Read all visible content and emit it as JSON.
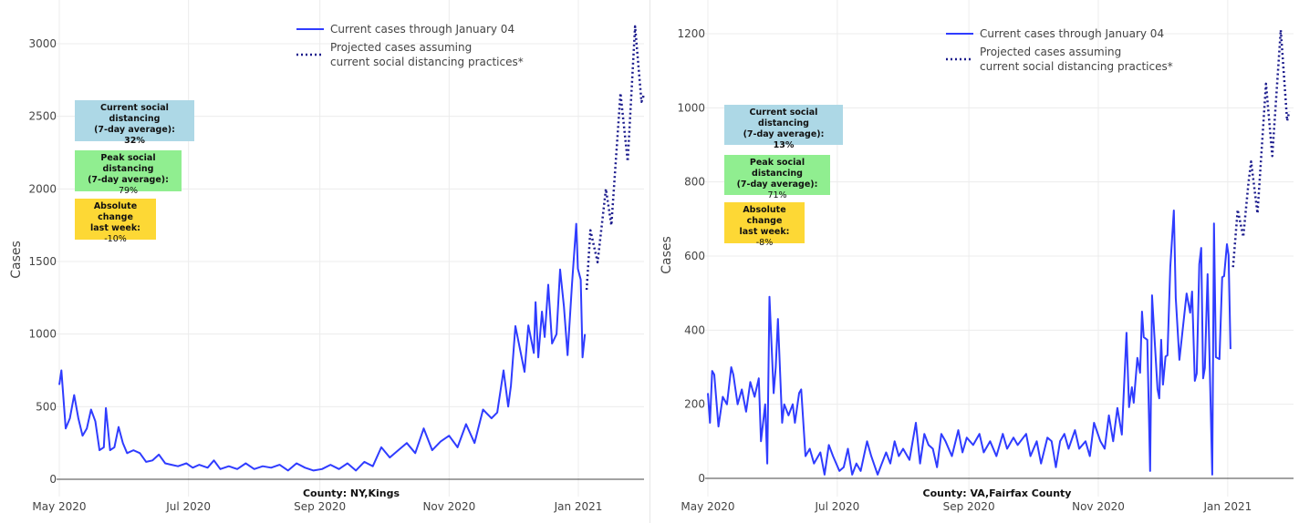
{
  "chart_data": [
    {
      "type": "line",
      "title": "",
      "xlabel": "County: NY,Kings",
      "ylabel": "Cases",
      "x_unit": "days since 2020-05-01",
      "xlim": [
        0,
        276
      ],
      "ylim": [
        0,
        3000
      ],
      "yticks": [
        0,
        500,
        1000,
        1500,
        2000,
        2500,
        3000
      ],
      "xticks": [
        {
          "day": 0,
          "label": "May 2020"
        },
        {
          "day": 61,
          "label": "Jul 2020"
        },
        {
          "day": 123,
          "label": "Sep 2020"
        },
        {
          "day": 184,
          "label": "Nov 2020"
        },
        {
          "day": 245,
          "label": "Jan 2021"
        }
      ],
      "grid": true,
      "legend_position": "top-center",
      "series": [
        {
          "name": "Current cases through January 04",
          "style": "solid",
          "color": "#2f3cff",
          "points": [
            [
              0,
              650
            ],
            [
              1,
              750
            ],
            [
              3,
              350
            ],
            [
              5,
              420
            ],
            [
              7,
              580
            ],
            [
              9,
              420
            ],
            [
              11,
              300
            ],
            [
              13,
              350
            ],
            [
              15,
              480
            ],
            [
              17,
              400
            ],
            [
              19,
              200
            ],
            [
              21,
              220
            ],
            [
              22,
              490
            ],
            [
              24,
              200
            ],
            [
              26,
              220
            ],
            [
              28,
              360
            ],
            [
              30,
              250
            ],
            [
              32,
              180
            ],
            [
              35,
              200
            ],
            [
              38,
              180
            ],
            [
              41,
              120
            ],
            [
              44,
              130
            ],
            [
              47,
              170
            ],
            [
              50,
              110
            ],
            [
              53,
              100
            ],
            [
              56,
              90
            ],
            [
              60,
              110
            ],
            [
              63,
              80
            ],
            [
              66,
              100
            ],
            [
              70,
              80
            ],
            [
              73,
              130
            ],
            [
              76,
              70
            ],
            [
              80,
              90
            ],
            [
              84,
              70
            ],
            [
              88,
              110
            ],
            [
              92,
              70
            ],
            [
              96,
              90
            ],
            [
              100,
              80
            ],
            [
              104,
              100
            ],
            [
              108,
              60
            ],
            [
              112,
              110
            ],
            [
              116,
              80
            ],
            [
              120,
              60
            ],
            [
              124,
              70
            ],
            [
              128,
              100
            ],
            [
              132,
              70
            ],
            [
              136,
              110
            ],
            [
              140,
              60
            ],
            [
              144,
              120
            ],
            [
              148,
              90
            ],
            [
              152,
              220
            ],
            [
              156,
              150
            ],
            [
              160,
              200
            ],
            [
              164,
              250
            ],
            [
              168,
              180
            ],
            [
              172,
              350
            ],
            [
              176,
              200
            ],
            [
              180,
              260
            ],
            [
              184,
              300
            ],
            [
              188,
              220
            ],
            [
              192,
              380
            ],
            [
              196,
              250
            ],
            [
              200,
              480
            ],
            [
              204,
              420
            ],
            [
              206.7,
              460
            ],
            [
              209.7,
              750
            ],
            [
              211.9,
              500
            ],
            [
              213.2,
              645
            ],
            [
              215.3,
              1055
            ],
            [
              219.6,
              740
            ],
            [
              221.4,
              1060
            ],
            [
              224,
              870
            ],
            [
              224.8,
              1220
            ],
            [
              226.1,
              840
            ],
            [
              227.8,
              1155
            ],
            [
              229.1,
              980
            ],
            [
              230.8,
              1340
            ],
            [
              232.6,
              935
            ],
            [
              234.7,
              1000
            ],
            [
              236.4,
              1445
            ],
            [
              238.2,
              1190
            ],
            [
              239.9,
              855
            ],
            [
              242,
              1340
            ],
            [
              244,
              1760
            ],
            [
              244.8,
              1450
            ],
            [
              246.1,
              1375
            ],
            [
              247,
              840
            ],
            [
              248.1,
              1000
            ]
          ]
        },
        {
          "name": "Projected cases assuming current social distancing practices*",
          "style": "dotted",
          "color": "#1a1a8c",
          "points": [
            [
              248.9,
              1305
            ],
            [
              250.7,
              1715
            ],
            [
              254.1,
              1495
            ],
            [
              258,
              2000
            ],
            [
              260.6,
              1750
            ],
            [
              264.9,
              2660
            ],
            [
              268.3,
              2190
            ],
            [
              271.8,
              3120
            ],
            [
              274.8,
              2600
            ],
            [
              276,
              2650
            ]
          ]
        }
      ]
    },
    {
      "type": "line",
      "title": "",
      "xlabel": "County: VA,Fairfax County",
      "ylabel": "Cases",
      "x_unit": "days since 2020-05-01",
      "xlim": [
        0,
        276
      ],
      "ylim": [
        0,
        1200
      ],
      "yticks": [
        0,
        200,
        400,
        600,
        800,
        1000,
        1200
      ],
      "xticks": [
        {
          "day": 0,
          "label": "May 2020"
        },
        {
          "day": 61,
          "label": "Jul 2020"
        },
        {
          "day": 123,
          "label": "Sep 2020"
        },
        {
          "day": 184,
          "label": "Nov 2020"
        },
        {
          "day": 245,
          "label": "Jan 2021"
        }
      ],
      "grid": true,
      "legend_position": "top-center",
      "series": [
        {
          "name": "Current cases through January 04",
          "style": "solid",
          "color": "#2f3cff",
          "points": [
            [
              0,
              230
            ],
            [
              1,
              150
            ],
            [
              2,
              290
            ],
            [
              3,
              280
            ],
            [
              5,
              140
            ],
            [
              7,
              220
            ],
            [
              9,
              200
            ],
            [
              11,
              300
            ],
            [
              12,
              280
            ],
            [
              14,
              200
            ],
            [
              16,
              240
            ],
            [
              18,
              180
            ],
            [
              20,
              260
            ],
            [
              22,
              220
            ],
            [
              24,
              270
            ],
            [
              25,
              100
            ],
            [
              27,
              200
            ],
            [
              28,
              40
            ],
            [
              29,
              490
            ],
            [
              31,
              230
            ],
            [
              32,
              300
            ],
            [
              33,
              430
            ],
            [
              35,
              150
            ],
            [
              36,
              200
            ],
            [
              38,
              170
            ],
            [
              40,
              200
            ],
            [
              41,
              150
            ],
            [
              43,
              230
            ],
            [
              44,
              240
            ],
            [
              46,
              60
            ],
            [
              48,
              80
            ],
            [
              50,
              40
            ],
            [
              53,
              70
            ],
            [
              55,
              10
            ],
            [
              57,
              90
            ],
            [
              59,
              60
            ],
            [
              62,
              20
            ],
            [
              64,
              30
            ],
            [
              66,
              80
            ],
            [
              68,
              10
            ],
            [
              70,
              40
            ],
            [
              72,
              20
            ],
            [
              75,
              100
            ],
            [
              77,
              60
            ],
            [
              80,
              10
            ],
            [
              82,
              40
            ],
            [
              84,
              70
            ],
            [
              86,
              40
            ],
            [
              88,
              100
            ],
            [
              90,
              60
            ],
            [
              92,
              80
            ],
            [
              95,
              50
            ],
            [
              98,
              150
            ],
            [
              100,
              40
            ],
            [
              102,
              120
            ],
            [
              104,
              90
            ],
            [
              106,
              80
            ],
            [
              108,
              30
            ],
            [
              110,
              120
            ],
            [
              112,
              100
            ],
            [
              115,
              60
            ],
            [
              118,
              130
            ],
            [
              120,
              70
            ],
            [
              122,
              110
            ],
            [
              125,
              90
            ],
            [
              128,
              120
            ],
            [
              130,
              70
            ],
            [
              133,
              100
            ],
            [
              136,
              60
            ],
            [
              139,
              120
            ],
            [
              141,
              80
            ],
            [
              144,
              110
            ],
            [
              146,
              90
            ],
            [
              150,
              120
            ],
            [
              152,
              60
            ],
            [
              155,
              100
            ],
            [
              157,
              40
            ],
            [
              160,
              110
            ],
            [
              162,
              100
            ],
            [
              164,
              30
            ],
            [
              166,
              100
            ],
            [
              168,
              120
            ],
            [
              170,
              80
            ],
            [
              173,
              130
            ],
            [
              175,
              80
            ],
            [
              178,
              100
            ],
            [
              180,
              60
            ],
            [
              182,
              150
            ],
            [
              185,
              100
            ],
            [
              187,
              80
            ],
            [
              189,
              170
            ],
            [
              191,
              100
            ],
            [
              193,
              190
            ],
            [
              195.1,
              118
            ],
            [
              197.3,
              393
            ],
            [
              198.5,
              192
            ],
            [
              199.8,
              246
            ],
            [
              200.7,
              204
            ],
            [
              202.4,
              325
            ],
            [
              203.7,
              285
            ],
            [
              204.6,
              450
            ],
            [
              205.4,
              381
            ],
            [
              207.1,
              374
            ],
            [
              208.4,
              20
            ],
            [
              209.3,
              494
            ],
            [
              211.9,
              241
            ],
            [
              212.7,
              216
            ],
            [
              213.6,
              374
            ],
            [
              214.5,
              253
            ],
            [
              215.7,
              329
            ],
            [
              216.6,
              332
            ],
            [
              217.9,
              570
            ],
            [
              219.6,
              723
            ],
            [
              220.5,
              487
            ],
            [
              222.2,
              320
            ],
            [
              225.6,
              499
            ],
            [
              227.3,
              447
            ],
            [
              228.2,
              504
            ],
            [
              229.5,
              263
            ],
            [
              230.4,
              283
            ],
            [
              231.6,
              578
            ],
            [
              232.5,
              622
            ],
            [
              233.4,
              270
            ],
            [
              234.2,
              298
            ],
            [
              235.5,
              551
            ],
            [
              237.7,
              10
            ],
            [
              238.5,
              688
            ],
            [
              239.4,
              327
            ],
            [
              241.1,
              322
            ],
            [
              242.4,
              543
            ],
            [
              243.3,
              546
            ],
            [
              244.6,
              632
            ],
            [
              245.4,
              602
            ],
            [
              246.3,
              349
            ]
          ]
        },
        {
          "name": "Projected cases assuming current social distancing practices*",
          "style": "dotted",
          "color": "#1a1a8c",
          "points": [
            [
              247.5,
              570
            ],
            [
              249.7,
              725
            ],
            [
              252.3,
              652
            ],
            [
              254.8,
              800
            ],
            [
              256,
              855
            ],
            [
              259,
              715
            ],
            [
              263,
              1065
            ],
            [
              266,
              870
            ],
            [
              270,
              1210
            ],
            [
              273,
              965
            ],
            [
              274,
              990
            ]
          ]
        }
      ]
    }
  ],
  "legend": {
    "current": "Current cases through January 04",
    "projected_line1": "Projected cases assuming",
    "projected_line2": "current social distancing practices*"
  },
  "panels": [
    {
      "current_sd": {
        "title": "Current social distancing",
        "subtitle": "(7-day average):",
        "value": "32%"
      },
      "peak_sd": {
        "title": "Peak social distancing",
        "subtitle": "(7-day average):",
        "value": "79%"
      },
      "abs_change": {
        "title": "Absolute change",
        "subtitle": "last week:",
        "value": "-10%"
      }
    },
    {
      "current_sd": {
        "title": "Current social distancing",
        "subtitle": "(7-day average):",
        "value": "13%"
      },
      "peak_sd": {
        "title": "Peak social distancing",
        "subtitle": "(7-day average):",
        "value": "71%"
      },
      "abs_change": {
        "title": "Absolute change",
        "subtitle": "last week:",
        "value": "-8%"
      }
    }
  ]
}
